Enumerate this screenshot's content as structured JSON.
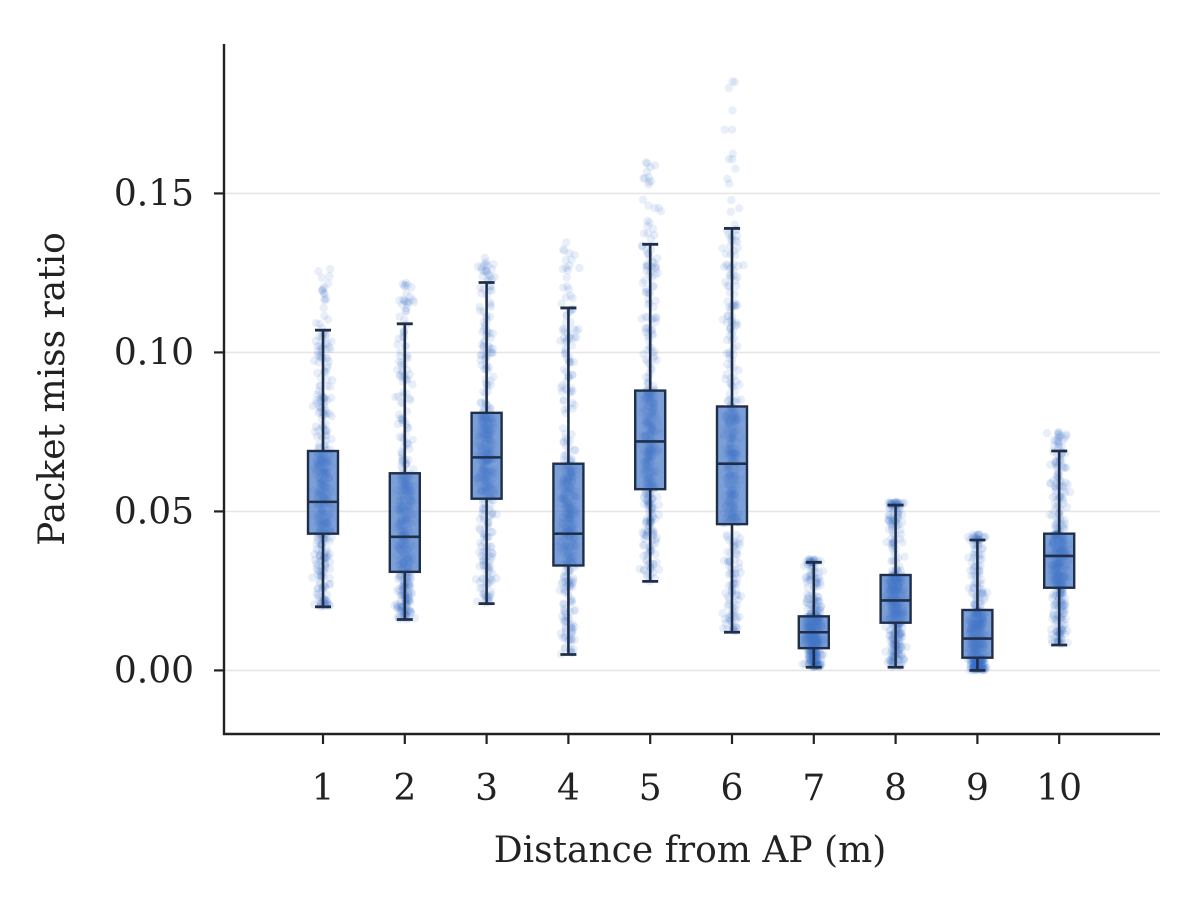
{
  "chart_data": {
    "type": "box",
    "title": "",
    "xlabel": "Distance from AP (m)",
    "ylabel": "Packet miss ratio",
    "categories": [
      "1",
      "2",
      "3",
      "4",
      "5",
      "6",
      "7",
      "8",
      "9",
      "10"
    ],
    "ylim": [
      -0.02,
      0.197
    ],
    "yticks": [
      0.0,
      0.05,
      0.1,
      0.15
    ],
    "ytick_labels": [
      "0.00",
      "0.05",
      "0.10",
      "0.15"
    ],
    "grid": "horizontal",
    "series_color": "#3a6fc9",
    "boxes": [
      {
        "category": "1",
        "whisker_low": 0.02,
        "q1": 0.043,
        "median": 0.053,
        "q3": 0.069,
        "whisker_high": 0.107,
        "points_min": 0.02,
        "points_max": 0.127
      },
      {
        "category": "2",
        "whisker_low": 0.016,
        "q1": 0.031,
        "median": 0.042,
        "q3": 0.062,
        "whisker_high": 0.109,
        "points_min": 0.016,
        "points_max": 0.122
      },
      {
        "category": "3",
        "whisker_low": 0.021,
        "q1": 0.054,
        "median": 0.067,
        "q3": 0.081,
        "whisker_high": 0.122,
        "points_min": 0.021,
        "points_max": 0.13
      },
      {
        "category": "4",
        "whisker_low": 0.005,
        "q1": 0.033,
        "median": 0.043,
        "q3": 0.065,
        "whisker_high": 0.114,
        "points_min": 0.005,
        "points_max": 0.135
      },
      {
        "category": "5",
        "whisker_low": 0.028,
        "q1": 0.057,
        "median": 0.072,
        "q3": 0.088,
        "whisker_high": 0.134,
        "points_min": 0.028,
        "points_max": 0.16
      },
      {
        "category": "6",
        "whisker_low": 0.012,
        "q1": 0.046,
        "median": 0.065,
        "q3": 0.083,
        "whisker_high": 0.139,
        "points_min": 0.012,
        "points_max": 0.188
      },
      {
        "category": "7",
        "whisker_low": 0.001,
        "q1": 0.007,
        "median": 0.012,
        "q3": 0.017,
        "whisker_high": 0.034,
        "points_min": 0.001,
        "points_max": 0.035
      },
      {
        "category": "8",
        "whisker_low": 0.001,
        "q1": 0.015,
        "median": 0.022,
        "q3": 0.03,
        "whisker_high": 0.052,
        "points_min": 0.001,
        "points_max": 0.053
      },
      {
        "category": "9",
        "whisker_low": 0.0,
        "q1": 0.004,
        "median": 0.01,
        "q3": 0.019,
        "whisker_high": 0.041,
        "points_min": 0.0,
        "points_max": 0.043
      },
      {
        "category": "10",
        "whisker_low": 0.008,
        "q1": 0.026,
        "median": 0.036,
        "q3": 0.043,
        "whisker_high": 0.069,
        "points_min": 0.008,
        "points_max": 0.075
      }
    ]
  }
}
